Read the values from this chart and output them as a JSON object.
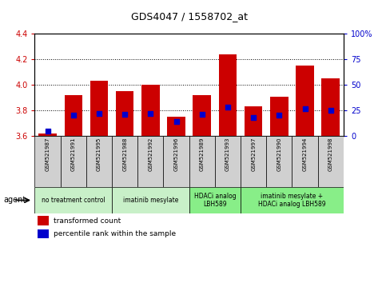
{
  "title": "GDS4047 / 1558702_at",
  "samples": [
    "GSM521987",
    "GSM521991",
    "GSM521995",
    "GSM521988",
    "GSM521992",
    "GSM521996",
    "GSM521989",
    "GSM521993",
    "GSM521997",
    "GSM521990",
    "GSM521994",
    "GSM521998"
  ],
  "transformed_count": [
    3.62,
    3.92,
    4.03,
    3.95,
    4.0,
    3.75,
    3.92,
    4.24,
    3.83,
    3.91,
    4.15,
    4.05
  ],
  "percentile_rank": [
    5,
    20,
    22,
    21,
    22,
    14,
    21,
    28,
    18,
    20,
    27,
    25
  ],
  "ylim_left": [
    3.6,
    4.4
  ],
  "ylim_right": [
    0,
    100
  ],
  "yticks_left": [
    3.6,
    3.8,
    4.0,
    4.2,
    4.4
  ],
  "yticks_right": [
    0,
    25,
    50,
    75,
    100
  ],
  "ytick_labels_right": [
    "0",
    "25",
    "50",
    "75",
    "100%"
  ],
  "bar_color": "#cc0000",
  "percentile_color": "#0000cc",
  "agent_groups": [
    {
      "label": "no treatment control",
      "start": 0,
      "end": 2,
      "color": "#c8f0c8"
    },
    {
      "label": "imatinib mesylate",
      "start": 3,
      "end": 5,
      "color": "#c8f0c8"
    },
    {
      "label": "HDACi analog\nLBH589",
      "start": 6,
      "end": 7,
      "color": "#88ee88"
    },
    {
      "label": "imatinib mesylate +\nHDACi analog LBH589",
      "start": 8,
      "end": 11,
      "color": "#88ee88"
    }
  ],
  "left_axis_color": "#cc0000",
  "right_axis_color": "#0000cc",
  "bar_bottom": 3.6,
  "bar_width": 0.7,
  "legend_items": [
    "transformed count",
    "percentile rank within the sample"
  ],
  "legend_colors": [
    "#cc0000",
    "#0000cc"
  ],
  "sample_box_color": "#d0d0d0",
  "fig_width": 4.83,
  "fig_height": 3.54,
  "fig_dpi": 100
}
